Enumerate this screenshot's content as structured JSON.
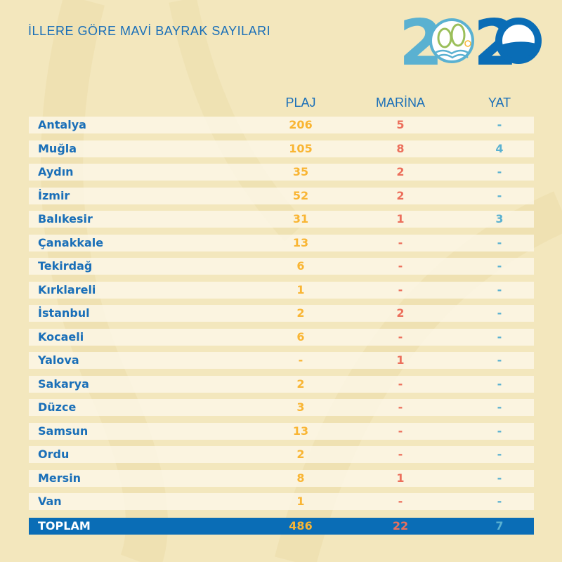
{
  "title": "İLLERE GÖRE MAVİ BAYRAK SAYILARI",
  "logo": {
    "text": "2020",
    "colors": {
      "light_blue": "#5ab1d1",
      "dark_blue": "#0a6db6",
      "green": "#9bbf5a",
      "sun": "#f9b533"
    }
  },
  "colors": {
    "background": "#f3e7bd",
    "heading": "#1a6fb8",
    "plaj": "#f9b533",
    "marina": "#ec6f5c",
    "yat": "#5ab1d1",
    "total_bar": "#0a6db6"
  },
  "columns": {
    "plaj": "PLAJ",
    "marina": "MARİNA",
    "yat": "YAT"
  },
  "rows": [
    {
      "name": "Antalya",
      "plaj": "206",
      "marina": "5",
      "yat": "-"
    },
    {
      "name": "Muğla",
      "plaj": "105",
      "marina": "8",
      "yat": "4"
    },
    {
      "name": "Aydın",
      "plaj": "35",
      "marina": "2",
      "yat": "-"
    },
    {
      "name": "İzmir",
      "plaj": "52",
      "marina": "2",
      "yat": "-"
    },
    {
      "name": "Balıkesir",
      "plaj": "31",
      "marina": "1",
      "yat": "3"
    },
    {
      "name": "Çanakkale",
      "plaj": "13",
      "marina": "-",
      "yat": "-"
    },
    {
      "name": "Tekirdağ",
      "plaj": "6",
      "marina": "-",
      "yat": "-"
    },
    {
      "name": "Kırklareli",
      "plaj": "1",
      "marina": "-",
      "yat": "-"
    },
    {
      "name": "İstanbul",
      "plaj": "2",
      "marina": "2",
      "yat": "-"
    },
    {
      "name": "Kocaeli",
      "plaj": "6",
      "marina": "-",
      "yat": "-"
    },
    {
      "name": "Yalova",
      "plaj": "-",
      "marina": "1",
      "yat": "-"
    },
    {
      "name": "Sakarya",
      "plaj": "2",
      "marina": "-",
      "yat": "-"
    },
    {
      "name": "Düzce",
      "plaj": "3",
      "marina": "-",
      "yat": "-"
    },
    {
      "name": "Samsun",
      "plaj": "13",
      "marina": "-",
      "yat": "-"
    },
    {
      "name": "Ordu",
      "plaj": "2",
      "marina": "-",
      "yat": "-"
    },
    {
      "name": "Mersin",
      "plaj": "8",
      "marina": "1",
      "yat": "-"
    },
    {
      "name": "Van",
      "plaj": "1",
      "marina": "-",
      "yat": "-"
    }
  ],
  "total": {
    "name": "TOPLAM",
    "plaj": "486",
    "marina": "22",
    "yat": "7"
  }
}
